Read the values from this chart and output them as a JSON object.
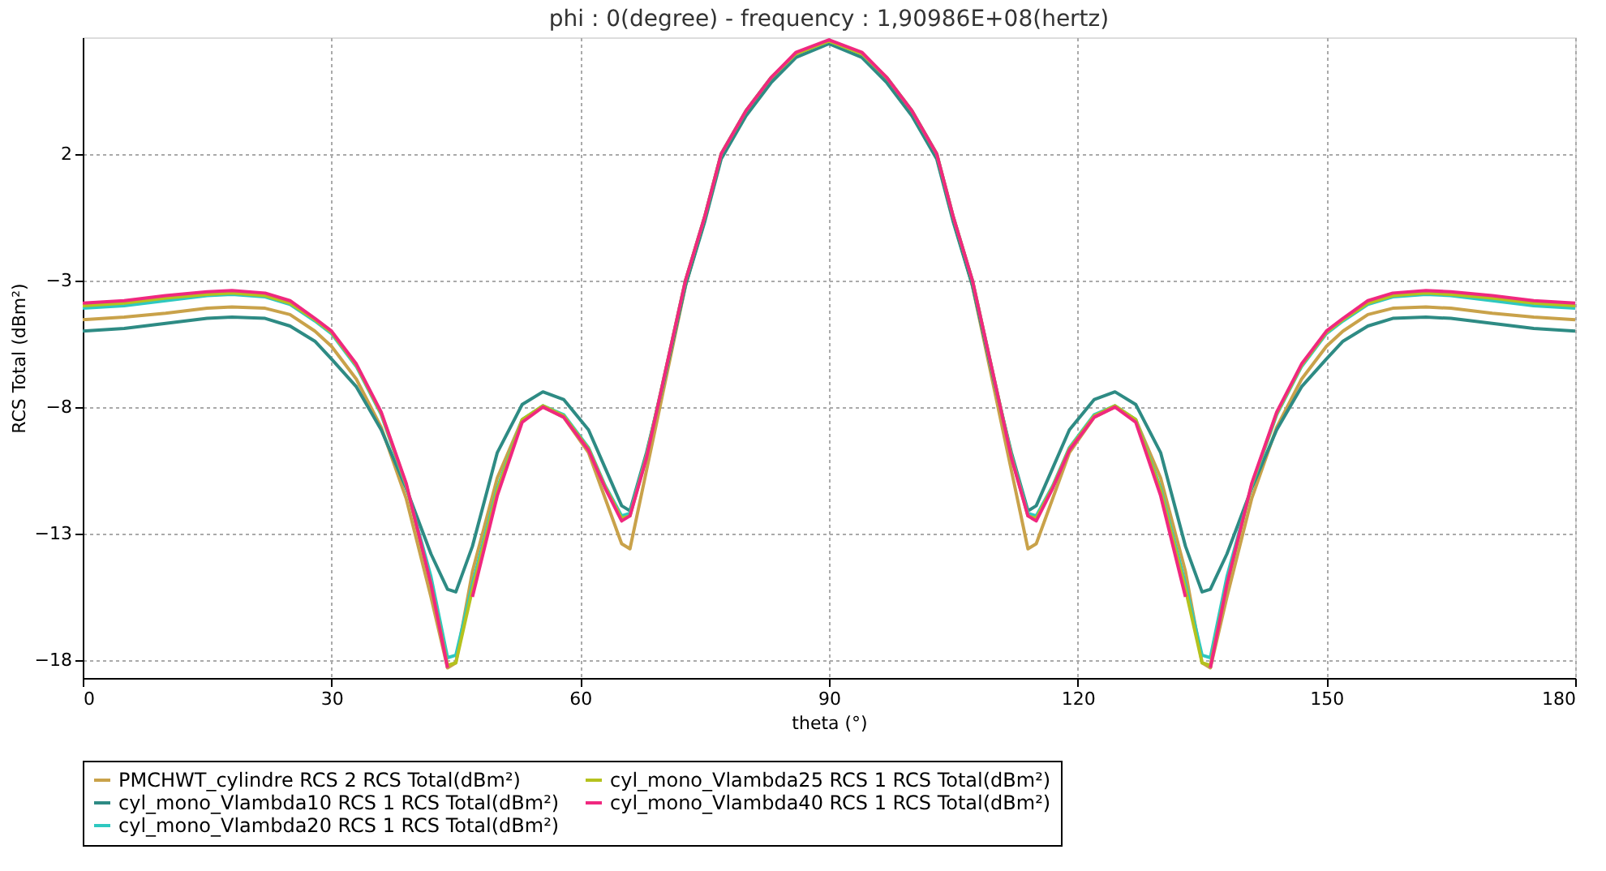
{
  "chart_data": {
    "type": "line",
    "title": "phi : 0(degree) - frequency : 1,90986E+08(hertz)",
    "xlabel": "theta (°)",
    "ylabel": "RCS Total (dBm²)",
    "x": [
      0,
      5,
      10,
      15,
      18,
      22,
      25,
      28,
      30,
      33,
      36,
      39,
      42,
      44,
      45,
      47,
      50,
      53,
      55.5,
      58,
      61,
      63,
      65,
      66,
      68,
      70,
      72.7,
      75,
      77,
      80,
      83,
      86,
      90,
      94,
      97,
      100,
      103,
      105,
      107.3,
      110,
      112,
      114,
      115,
      117,
      119,
      122,
      124.5,
      127,
      130,
      133,
      135,
      136,
      138,
      141,
      144,
      147,
      150,
      152,
      155,
      158,
      162,
      165,
      170,
      175,
      180
    ],
    "series": [
      {
        "name": "PMCHWT_cylindre RCS 2 RCS Total(dBm²)",
        "color": "#c9a24a",
        "values": [
          -4.55,
          -4.45,
          -4.3,
          -4.1,
          -4.05,
          -4.1,
          -4.35,
          -5.0,
          -5.6,
          -6.9,
          -8.8,
          -11.6,
          -15.5,
          -18.3,
          -18.1,
          -14.5,
          -10.8,
          -8.5,
          -8.0,
          -8.4,
          -9.8,
          -11.6,
          -13.4,
          -13.6,
          -10.5,
          -7.4,
          -3.2,
          -0.6,
          1.9,
          3.6,
          4.9,
          5.9,
          6.45,
          5.9,
          4.9,
          3.6,
          1.9,
          -0.6,
          -3.2,
          -7.4,
          -10.5,
          -13.6,
          -13.4,
          -11.6,
          -9.8,
          -8.4,
          -8.0,
          -8.5,
          -10.8,
          -14.5,
          -18.1,
          -18.3,
          -15.5,
          -11.6,
          -8.8,
          -6.9,
          -5.6,
          -5.0,
          -4.35,
          -4.1,
          -4.05,
          -4.1,
          -4.3,
          -4.45,
          -4.55
        ]
      },
      {
        "name": "cyl_mono_Vlambda10 RCS 1 RCS Total(dBm²)",
        "color": "#2e8b84",
        "values": [
          -5.0,
          -4.9,
          -4.7,
          -4.5,
          -4.45,
          -4.5,
          -4.8,
          -5.4,
          -6.1,
          -7.2,
          -8.9,
          -11.2,
          -13.8,
          -15.2,
          -15.3,
          -13.5,
          -9.8,
          -7.9,
          -7.4,
          -7.7,
          -8.9,
          -10.4,
          -11.9,
          -12.1,
          -9.8,
          -7.1,
          -3.2,
          -0.7,
          1.8,
          3.5,
          4.8,
          5.8,
          6.35,
          5.8,
          4.8,
          3.5,
          1.8,
          -0.7,
          -3.2,
          -7.1,
          -9.8,
          -12.1,
          -11.9,
          -10.4,
          -8.9,
          -7.7,
          -7.4,
          -7.9,
          -9.8,
          -13.5,
          -15.3,
          -15.2,
          -13.8,
          -11.2,
          -8.9,
          -7.2,
          -6.1,
          -5.4,
          -4.8,
          -4.5,
          -4.45,
          -4.5,
          -4.7,
          -4.9,
          -5.0
        ]
      },
      {
        "name": "cyl_mono_Vlambda20 RCS 1 RCS Total(dBm²)",
        "color": "#2ec8c0",
        "values": [
          -4.1,
          -4.0,
          -3.8,
          -3.6,
          -3.55,
          -3.65,
          -3.95,
          -4.6,
          -5.1,
          -6.4,
          -8.3,
          -11.1,
          -14.7,
          -17.9,
          -17.8,
          -15.0,
          -11.2,
          -8.5,
          -7.95,
          -8.3,
          -9.6,
          -11.1,
          -12.3,
          -12.2,
          -9.9,
          -7.0,
          -3.0,
          -0.5,
          2.0,
          3.7,
          5.0,
          5.95,
          6.45,
          5.95,
          5.0,
          3.7,
          2.0,
          -0.5,
          -3.0,
          -7.0,
          -9.9,
          -12.2,
          -12.3,
          -11.1,
          -9.6,
          -8.3,
          -7.95,
          -8.5,
          -11.2,
          -15.0,
          -17.8,
          -17.9,
          -14.7,
          -11.1,
          -8.3,
          -6.4,
          -5.1,
          -4.6,
          -3.95,
          -3.65,
          -3.55,
          -3.6,
          -3.8,
          -4.0,
          -4.1
        ]
      },
      {
        "name": "cyl_mono_Vlambda25 RCS 1 RCS Total(dBm²)",
        "color": "#b5c21e",
        "values": [
          -4.0,
          -3.9,
          -3.7,
          -3.55,
          -3.5,
          -3.6,
          -3.9,
          -4.55,
          -5.05,
          -6.35,
          -8.25,
          -11.05,
          -15.0,
          -18.2,
          -18.1,
          -15.2,
          -11.3,
          -8.5,
          -7.95,
          -8.35,
          -9.65,
          -11.15,
          -12.4,
          -12.3,
          -9.95,
          -7.0,
          -3.0,
          -0.5,
          2.0,
          3.7,
          5.0,
          5.95,
          6.45,
          5.95,
          5.0,
          3.7,
          2.0,
          -0.5,
          -3.0,
          -7.0,
          -9.95,
          -12.3,
          -12.4,
          -11.15,
          -9.65,
          -8.35,
          -7.95,
          -8.5,
          -11.3,
          -15.2,
          -18.1,
          -18.2,
          -15.0,
          -11.05,
          -8.25,
          -6.35,
          -5.05,
          -4.55,
          -3.9,
          -3.6,
          -3.5,
          -3.55,
          -3.7,
          -3.9,
          -4.0
        ]
      },
      {
        "name": "cyl_mono_Vlambda40 RCS 1 RCS Total(dBm²)",
        "color": "#f0287f",
        "values": [
          -3.9,
          -3.8,
          -3.6,
          -3.45,
          -3.4,
          -3.5,
          -3.8,
          -4.5,
          -5.0,
          -6.3,
          -8.2,
          -11.0,
          -15.0,
          -18.3,
          null,
          -15.5,
          -11.5,
          -8.6,
          -8.0,
          -8.4,
          -9.7,
          -11.2,
          -12.5,
          -12.3,
          -10.0,
          -7.0,
          -3.0,
          -0.5,
          2.0,
          3.7,
          5.0,
          6.0,
          6.5,
          6.0,
          5.0,
          3.7,
          2.0,
          -0.5,
          -3.0,
          -7.0,
          -10.0,
          -12.3,
          -12.5,
          -11.2,
          -9.7,
          -8.4,
          -8.0,
          -8.6,
          -11.5,
          -15.5,
          null,
          -18.3,
          -15.0,
          -11.0,
          -8.2,
          -6.3,
          -5.0,
          -4.5,
          -3.8,
          -3.5,
          -3.4,
          -3.45,
          -3.6,
          -3.8,
          -3.9
        ]
      }
    ],
    "xlim": [
      0,
      180
    ],
    "xticks": [
      0,
      30,
      60,
      90,
      120,
      150,
      180
    ],
    "ylim": [
      -18.7,
      6.6
    ],
    "yticks": [
      -18,
      -13,
      -8,
      -3,
      2
    ],
    "grid": true,
    "legend": "bottom",
    "marker": "none",
    "line_style": "solid"
  }
}
